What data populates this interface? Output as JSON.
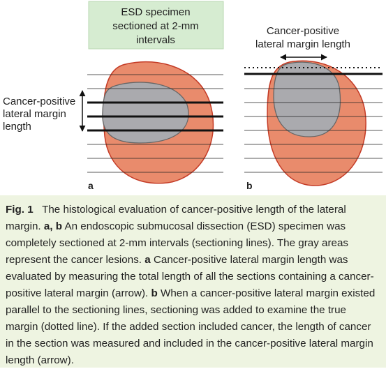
{
  "figure": {
    "header_box": {
      "lines": [
        "ESD specimen",
        "sectioned at 2-mm",
        "intervals"
      ]
    },
    "panel_a": {
      "label": "a",
      "annotation": [
        "Cancer-positive",
        "lateral margin",
        "length"
      ]
    },
    "panel_b": {
      "label": "b",
      "annotation": [
        "Cancer-positive",
        "lateral margin length"
      ]
    }
  },
  "caption": {
    "label": "Fig. 1",
    "parts": [
      {
        "text": "The histological evaluation of cancer-positive length of the lateral margin.",
        "bold": false
      },
      {
        "text": "a, b",
        "bold": true
      },
      {
        "text": "An endoscopic submucosal dissection (ESD) specimen was completely sectioned at 2-mm intervals (sectioning lines). The gray areas represent the cancer lesions.",
        "bold": false
      },
      {
        "text": "a",
        "bold": true
      },
      {
        "text": "Cancer-positive lateral margin length was evaluated by measuring the total length of all the sections containing a cancer-positive lateral margin (arrow).",
        "bold": false
      },
      {
        "text": "b",
        "bold": true
      },
      {
        "text": "When a cancer-positive lateral margin existed parallel to the sectioning lines, sectioning was added to examine the true margin (dotted line). If the added section included cancer, the length of cancer in the section was measured and included in the cancer-positive lateral margin length (arrow).",
        "bold": false
      }
    ]
  }
}
